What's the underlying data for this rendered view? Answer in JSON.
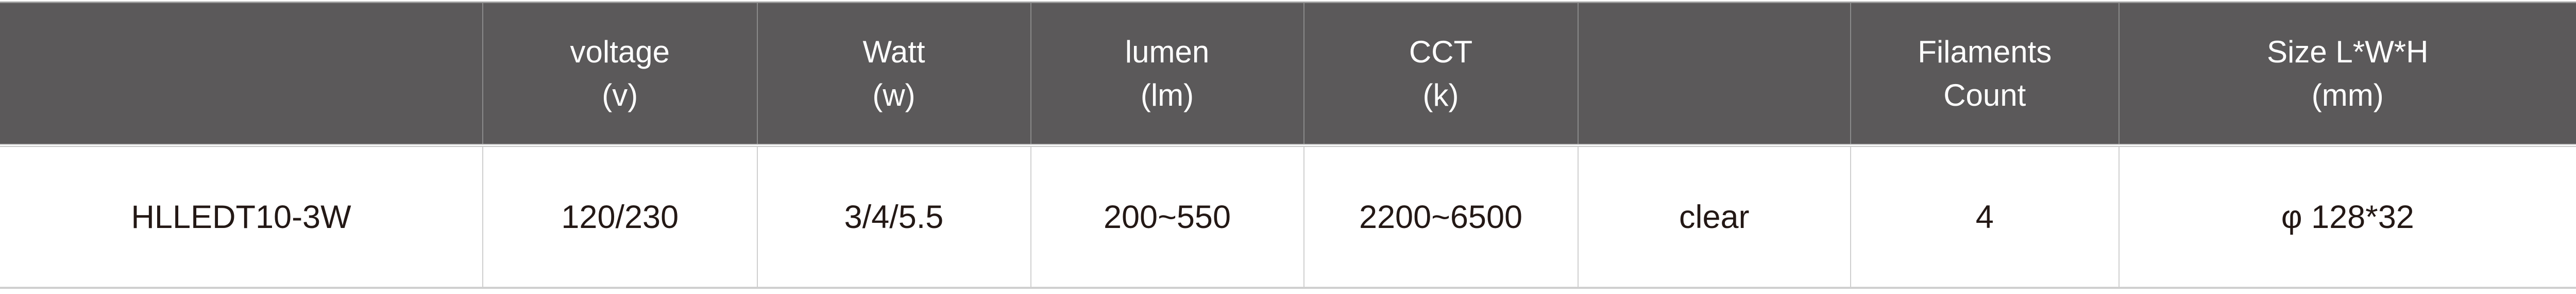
{
  "colors": {
    "header_bg": "#5b595a",
    "header_text": "#ffffff",
    "body_text": "#231815",
    "grid": "#cfcfcf"
  },
  "table": {
    "headers": [
      {
        "line1": "",
        "line2": ""
      },
      {
        "line1": "voltage",
        "line2": "(v)"
      },
      {
        "line1": "Watt",
        "line2": "(w)"
      },
      {
        "line1": "lumen",
        "line2": "(lm)"
      },
      {
        "line1": "CCT",
        "line2": "(k)"
      },
      {
        "line1": "",
        "line2": ""
      },
      {
        "line1": "Filaments",
        "line2": "Count"
      },
      {
        "line1": "Size L*W*H",
        "line2": "(mm)"
      }
    ],
    "rows": [
      [
        "HLLEDT10-3W",
        "120/230",
        "3/4/5.5",
        "200~550",
        "2200~6500",
        "clear",
        "4",
        "φ 128*32"
      ]
    ]
  }
}
